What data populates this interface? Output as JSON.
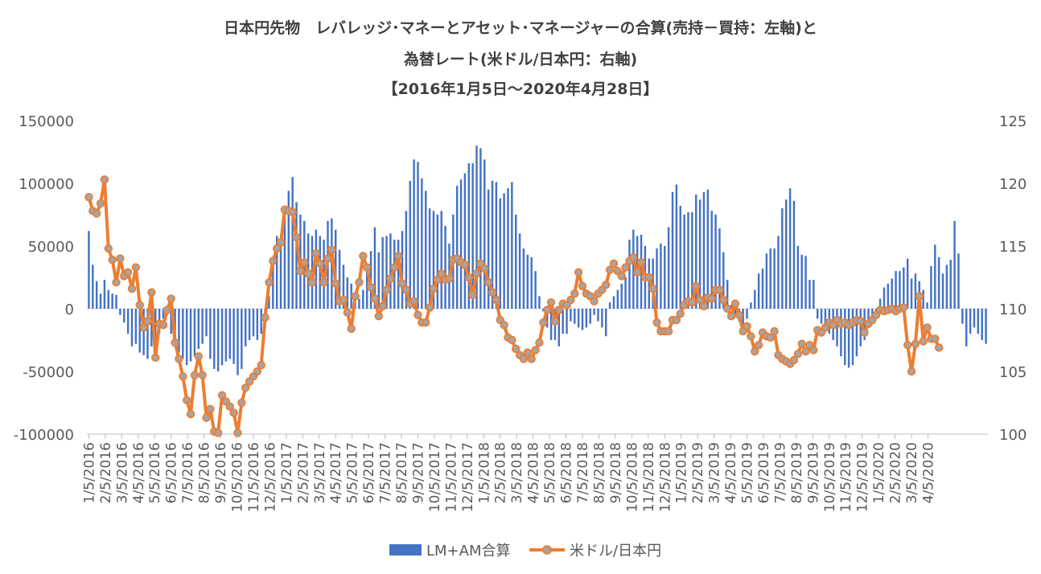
{
  "chart_data": {
    "type": "bar+line",
    "title_lines": [
      "日本円先物　レバレッジ･マネーとアセット･マネージャーの合算(売持－買持：左軸)と",
      "為替レート(米ドル/日本円：右軸)",
      "【2016年1月5日～2020年4月28日】"
    ],
    "y_left_range": [
      -100000,
      150000
    ],
    "y_left_ticks": [
      "150000",
      "100000",
      "50000",
      "0",
      "-50000",
      "-100000"
    ],
    "y_right_range": [
      100,
      125
    ],
    "y_right_ticks": [
      "125",
      "120",
      "115",
      "110",
      "105",
      "100"
    ],
    "x_tick_labels": [
      "1/5/2016",
      "2/5/2016",
      "3/5/2016",
      "4/5/2016",
      "5/5/2016",
      "6/5/2016",
      "7/5/2016",
      "8/5/2016",
      "9/5/2016",
      "10/5/2016",
      "11/5/2016",
      "12/5/2016",
      "1/5/2017",
      "2/5/2017",
      "3/5/2017",
      "4/5/2017",
      "5/5/2017",
      "6/5/2017",
      "7/5/2017",
      "8/5/2017",
      "9/5/2017",
      "10/5/2017",
      "11/5/2017",
      "12/5/2017",
      "1/5/2018",
      "2/5/2018",
      "3/5/2018",
      "4/5/2018",
      "5/5/2018",
      "6/5/2018",
      "7/5/2018",
      "8/5/2018",
      "9/5/2018",
      "10/5/2018",
      "11/5/2018",
      "12/5/2018",
      "1/5/2019",
      "2/5/2019",
      "3/5/2019",
      "4/5/2019",
      "5/5/2019",
      "6/5/2019",
      "7/5/2019",
      "8/5/2019",
      "9/5/2019",
      "10/5/2019",
      "11/5/2019",
      "12/5/2019",
      "1/5/2020",
      "2/5/2020",
      "3/5/2020",
      "4/5/2020"
    ],
    "legend_position": "bottom",
    "series": [
      {
        "name": "LM+AM合算",
        "type": "bar",
        "axis": "left",
        "color": "#4472C4",
        "values": [
          62000,
          35000,
          22000,
          12000,
          23000,
          15000,
          12000,
          11000,
          -5000,
          -11000,
          -20000,
          -30000,
          -28000,
          -35000,
          -37000,
          -40000,
          -30000,
          -35000,
          -20000,
          -8000,
          -5000,
          -20000,
          -25000,
          -35000,
          -40000,
          -45000,
          -42000,
          -38000,
          -32000,
          -28000,
          -22000,
          -40000,
          -48000,
          -50000,
          -45000,
          -42000,
          -40000,
          -44000,
          -53000,
          -48000,
          -30000,
          -25000,
          -22000,
          -25000,
          -20000,
          -10000,
          10000,
          35000,
          58000,
          55000,
          80000,
          94000,
          105000,
          85000,
          75000,
          70000,
          60000,
          58000,
          63000,
          58000,
          55000,
          70000,
          72000,
          63000,
          47000,
          35000,
          25000,
          20000,
          5000,
          8000,
          15000,
          35000,
          46000,
          65000,
          45000,
          57000,
          58000,
          60000,
          55000,
          55000,
          62000,
          78000,
          102000,
          119000,
          117000,
          104000,
          94000,
          80000,
          78000,
          75000,
          78000,
          66000,
          52000,
          75000,
          98000,
          103000,
          108000,
          116000,
          116000,
          130000,
          128000,
          119000,
          95000,
          102000,
          101000,
          88000,
          92000,
          96000,
          101000,
          75000,
          60000,
          48000,
          43000,
          41000,
          30000,
          10000,
          -2000,
          -15000,
          -25000,
          -25000,
          -30000,
          -20000,
          -20000,
          -10000,
          -12000,
          -15000,
          -17000,
          -15000,
          -12000,
          -5000,
          -10000,
          -15000,
          -22000,
          5000,
          10000,
          15000,
          20000,
          25000,
          55000,
          63000,
          58000,
          59000,
          50000,
          40000,
          40000,
          48000,
          52000,
          50000,
          65000,
          93000,
          99000,
          82000,
          75000,
          77000,
          77000,
          91000,
          87000,
          93000,
          95000,
          78000,
          75000,
          64000,
          45000,
          23000,
          3000,
          -5000,
          -10000,
          -15000,
          -8000,
          5000,
          15000,
          28000,
          32000,
          44000,
          48000,
          48000,
          58000,
          80000,
          87000,
          96000,
          86000,
          50000,
          43000,
          42000,
          23000,
          23000,
          -8000,
          -12000,
          -15000,
          -20000,
          -25000,
          -30000,
          -38000,
          -45000,
          -47000,
          -45000,
          -38000,
          -30000,
          -25000,
          -15000,
          -10000,
          -8000,
          8000,
          17000,
          20000,
          24000,
          30000,
          30000,
          33000,
          40000,
          24000,
          28000,
          22000,
          15000,
          5000,
          34000,
          51000,
          41000,
          28000,
          35000,
          39000,
          70000,
          44000,
          -12000,
          -30000,
          -20000,
          -15000,
          -20000,
          -25000,
          -28000
        ]
      },
      {
        "name": "米ドル/日本円",
        "type": "line",
        "axis": "right",
        "color": "#ED7D31",
        "marker_color": "#A5A5A5",
        "values": [
          118.9,
          117.8,
          117.6,
          118.4,
          120.3,
          114.8,
          113.9,
          112.1,
          114.0,
          112.6,
          112.9,
          111.6,
          113.3,
          110.3,
          108.5,
          109.0,
          111.3,
          106.1,
          108.8,
          108.7,
          109.9,
          110.8,
          107.3,
          106.0,
          104.6,
          102.7,
          101.6,
          104.7,
          106.2,
          104.7,
          101.3,
          102.0,
          100.2,
          100.1,
          103.1,
          102.6,
          102.2,
          101.7,
          100.1,
          102.5,
          103.7,
          104.2,
          104.6,
          105.0,
          105.5,
          109.3,
          112.1,
          113.8,
          114.8,
          115.3,
          117.9,
          117.8,
          117.7,
          115.7,
          113.0,
          113.7,
          112.8,
          112.1,
          114.4,
          113.6,
          112.1,
          114.0,
          114.7,
          112.0,
          110.6,
          110.7,
          109.7,
          108.4,
          111.0,
          112.1,
          114.2,
          113.3,
          111.7,
          110.8,
          109.4,
          110.2,
          111.5,
          112.4,
          113.3,
          114.2,
          112.0,
          111.5,
          110.4,
          110.6,
          109.5,
          108.9,
          108.9,
          110.1,
          111.6,
          112.3,
          112.8,
          112.3,
          112.4,
          113.9,
          114.0,
          113.7,
          113.5,
          112.5,
          111.1,
          112.8,
          113.6,
          113.2,
          112.1,
          111.3,
          110.7,
          109.1,
          108.7,
          107.7,
          107.5,
          106.8,
          106.3,
          106.0,
          106.5,
          106.0,
          106.7,
          107.3,
          108.9,
          109.9,
          110.5,
          109.0,
          109.9,
          110.4,
          110.3,
          110.7,
          111.2,
          112.9,
          111.8,
          111.2,
          111.0,
          110.6,
          111.2,
          111.5,
          111.9,
          113.1,
          113.6,
          113.0,
          112.6,
          113.3,
          113.8,
          114.1,
          112.9,
          113.7,
          112.5,
          112.5,
          111.6,
          108.9,
          108.2,
          108.2,
          108.2,
          109.1,
          109.1,
          109.6,
          110.3,
          110.6,
          110.5,
          111.8,
          110.7,
          110.2,
          110.9,
          110.8,
          111.5,
          111.5,
          110.7,
          110.0,
          109.4,
          110.4,
          109.5,
          108.2,
          108.6,
          107.8,
          106.6,
          107.1,
          108.1,
          107.8,
          107.7,
          108.2,
          106.3,
          106.0,
          105.8,
          105.6,
          105.9,
          106.4,
          107.2,
          106.6,
          107.1,
          106.7,
          108.3,
          108.1,
          108.5,
          108.9,
          108.7,
          109.1,
          108.8,
          108.9,
          108.7,
          108.9,
          109.1,
          109.0,
          108.1,
          108.8,
          109.1,
          109.5,
          109.9,
          109.8,
          109.9,
          110.0,
          109.8,
          110.0,
          110.1,
          107.1,
          105.0,
          107.2,
          111.0,
          107.4,
          108.5,
          107.6,
          107.6,
          106.9
        ]
      }
    ]
  }
}
